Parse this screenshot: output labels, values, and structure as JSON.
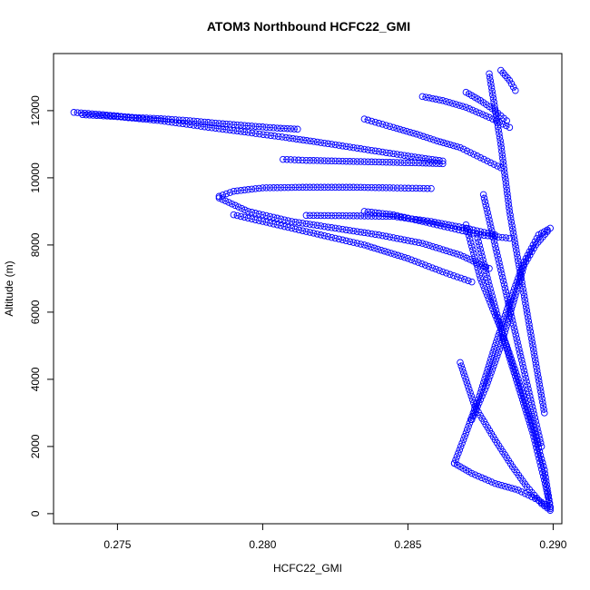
{
  "chart_data": {
    "type": "scatter",
    "title": "ATOM3 Northbound HCFC22_GMI",
    "xlabel": "HCFC22_GMI",
    "ylabel": "Altitude (m)",
    "xlim": [
      0.2728,
      0.2903
    ],
    "ylim": [
      -300,
      13700
    ],
    "x_ticks": [
      "0.275",
      "0.280",
      "0.285",
      "0.290"
    ],
    "x_tick_values": [
      0.275,
      0.28,
      0.285,
      0.29
    ],
    "y_ticks": [
      "0",
      "2000",
      "4000",
      "6000",
      "8000",
      "10000",
      "12000"
    ],
    "y_tick_values": [
      0,
      2000,
      4000,
      6000,
      8000,
      10000,
      12000
    ],
    "marker": "open-circle",
    "color": "#0000ff",
    "series": [
      {
        "x": [
          0.2735,
          0.2745,
          0.2755,
          0.2765,
          0.2775,
          0.2785,
          0.2795,
          0.2805,
          0.2812
        ],
        "y": [
          11950,
          11880,
          11800,
          11760,
          11700,
          11620,
          11550,
          11480,
          11450
        ]
      },
      {
        "x": [
          0.2738,
          0.275,
          0.2765,
          0.278,
          0.2795,
          0.2808,
          0.282,
          0.2835,
          0.285,
          0.2862
        ],
        "y": [
          11880,
          11820,
          11700,
          11520,
          11350,
          11200,
          11050,
          10850,
          10650,
          10500
        ]
      },
      {
        "x": [
          0.2807,
          0.2815,
          0.2825,
          0.2835,
          0.2845,
          0.2855,
          0.2862
        ],
        "y": [
          10550,
          10520,
          10500,
          10480,
          10460,
          10440,
          10420
        ]
      },
      {
        "x": [
          0.2835,
          0.2845,
          0.2853,
          0.286,
          0.2868,
          0.2875,
          0.2882
        ],
        "y": [
          11750,
          11500,
          11300,
          11100,
          10900,
          10600,
          10300
        ]
      },
      {
        "x": [
          0.2785,
          0.279,
          0.28,
          0.2815,
          0.283,
          0.2845,
          0.2858
        ],
        "y": [
          9450,
          9600,
          9700,
          9720,
          9720,
          9700,
          9680
        ]
      },
      {
        "x": [
          0.2785,
          0.2795,
          0.281,
          0.2825,
          0.284,
          0.2855,
          0.2868,
          0.2878
        ],
        "y": [
          9400,
          9000,
          8700,
          8500,
          8300,
          8050,
          7700,
          7300
        ]
      },
      {
        "x": [
          0.279,
          0.2805,
          0.282,
          0.2835,
          0.285,
          0.2862,
          0.2872
        ],
        "y": [
          8900,
          8600,
          8300,
          8000,
          7600,
          7200,
          6900
        ]
      },
      {
        "x": [
          0.2815,
          0.283,
          0.2845,
          0.2858,
          0.287,
          0.288
        ],
        "y": [
          8880,
          8870,
          8850,
          8700,
          8500,
          8300
        ]
      },
      {
        "x": [
          0.2835,
          0.2845,
          0.2855,
          0.2865,
          0.2875,
          0.2885
        ],
        "y": [
          9000,
          8900,
          8700,
          8500,
          8300,
          8200
        ]
      },
      {
        "x": [
          0.2855,
          0.2862,
          0.287,
          0.2878,
          0.2885
        ],
        "y": [
          12420,
          12300,
          12100,
          11800,
          11500
        ]
      },
      {
        "x": [
          0.287,
          0.2875,
          0.288,
          0.2884
        ],
        "y": [
          12550,
          12300,
          12000,
          11700
        ]
      },
      {
        "x": [
          0.2882,
          0.2885,
          0.2887
        ],
        "y": [
          13200,
          12900,
          12600
        ]
      },
      {
        "x": [
          0.2866,
          0.287,
          0.2875,
          0.288,
          0.2885,
          0.289,
          0.2895,
          0.2899
        ],
        "y": [
          1500,
          2400,
          3600,
          5000,
          6300,
          7500,
          8300,
          8500
        ]
      },
      {
        "x": [
          0.287,
          0.2875,
          0.2882,
          0.2888,
          0.2893,
          0.2897,
          0.2899
        ],
        "y": [
          8600,
          7000,
          5500,
          4000,
          2600,
          1300,
          200
        ]
      },
      {
        "x": [
          0.2868,
          0.2873,
          0.288,
          0.2886,
          0.2891,
          0.2896,
          0.2899
        ],
        "y": [
          4500,
          3200,
          2200,
          1400,
          800,
          300,
          100
        ]
      },
      {
        "x": [
          0.2874,
          0.2878,
          0.2883,
          0.2888,
          0.2893,
          0.2897,
          0.2899
        ],
        "y": [
          8200,
          6800,
          5200,
          3800,
          2400,
          1000,
          200
        ]
      },
      {
        "x": [
          0.2872,
          0.2877,
          0.2882,
          0.2886,
          0.289,
          0.2894,
          0.2898
        ],
        "y": [
          2800,
          3800,
          5000,
          6200,
          7400,
          8000,
          8400
        ]
      },
      {
        "x": [
          0.2866,
          0.2872,
          0.288,
          0.2888,
          0.2895,
          0.2899
        ],
        "y": [
          1500,
          1200,
          900,
          700,
          400,
          150
        ]
      },
      {
        "x": [
          0.2876,
          0.288,
          0.2884,
          0.2888,
          0.2892,
          0.2896
        ],
        "y": [
          9500,
          8000,
          6500,
          5000,
          3500,
          2000
        ]
      },
      {
        "x": [
          0.2878,
          0.2882,
          0.2885,
          0.2889,
          0.2893,
          0.2897
        ],
        "y": [
          13100,
          11000,
          9000,
          7000,
          5000,
          3000
        ]
      }
    ]
  }
}
